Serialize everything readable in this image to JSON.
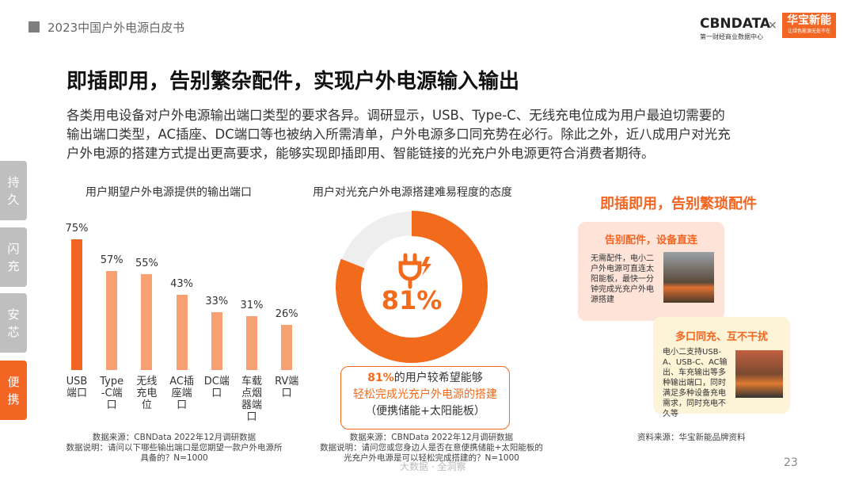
{
  "header": {
    "title": "2023中国户外电源白皮书",
    "logo_left": "CBNDATA",
    "logo_left_sub": "第一财经商业数据中心",
    "times": "×",
    "logo_right": "华宝新能",
    "logo_right_sub": "让绿色能源无处不在"
  },
  "title": "即插即用，告别繁杂配件，实现户外电源输入输出",
  "paragraph": [
    "各类用电设备对户外电源输出端口类型的要求各异。调研显示，USB、Type-C、无线充电位成为用户最迫切需要的",
    "输出端口类型，AC插座、DC端口等也被纳入所需清单，户外电源多口同充势在必行。除此之外，近八成用户对光充",
    "户外电源的搭建方式提出更高要求，能够实现即插即用、智能链接的光充户外电源更符合消费者期待。"
  ],
  "side_tabs": [
    "持\n久",
    "闪\n充",
    "安\n芯",
    "便\n携"
  ],
  "chart_data": [
    {
      "type": "bar",
      "title": "用户期望户外电源提供的输出端口",
      "categories": [
        "USB\n端口",
        "Type\n-C端\n口",
        "无线\n充电\n位",
        "AC插\n座端\n口",
        "DC端\n口",
        "车载\n点烟\n器端\n口",
        "RV端\n口"
      ],
      "values": [
        75,
        57,
        55,
        43,
        33,
        31,
        26
      ],
      "value_labels": [
        "75%",
        "57%",
        "55%",
        "43%",
        "33%",
        "31%",
        "26%"
      ],
      "colors": [
        "#f26522",
        "#f7a072",
        "#f7a072",
        "#f7a072",
        "#f7a072",
        "#f7a072",
        "#f7a072"
      ]
    },
    {
      "type": "pie",
      "title": "用户对光充户外电源搭建难易程度的态度",
      "values": [
        81
      ],
      "value_labels": [
        "81%"
      ],
      "color": "#f26b1d"
    }
  ],
  "callout": {
    "highlight": "81%",
    "line1": "的用户较希望能够",
    "line2": "轻松完成光充户外电源的搭建",
    "line3": "（便携储能+太阳能板）"
  },
  "panel": {
    "heading": "即插即用，告别繁琐配件",
    "cards": [
      {
        "title": "告别配件，设备直连",
        "text": "无需配件，电小二户外电源可直连太阳能板，最快一分钟完成光充户外电源搭建"
      },
      {
        "title": "多口同充、互不干扰",
        "text": "电小二支持USB-A、USB-C、AC输出、车充输出等多种输出端口，同时满足多种设备充电需求，同时充电不久等"
      }
    ]
  },
  "sources": {
    "left": [
      "数据来源：CBNData 2022年12月调研数据",
      "数据说明：请问以下哪些输出端口是您期望一款户外电源所",
      "具备的？N=1000"
    ],
    "middle": [
      "数据来源：CBNData 2022年12月调研数据",
      "数据说明：请问您或您身边人是否在意便携储能+太阳能板的",
      "光充户外电源是可以轻松完成搭建的？N=1000"
    ],
    "right": "资料来源：华宝新能品牌资料"
  },
  "page_number": "23",
  "watermark": "大数据 · 全洞察"
}
